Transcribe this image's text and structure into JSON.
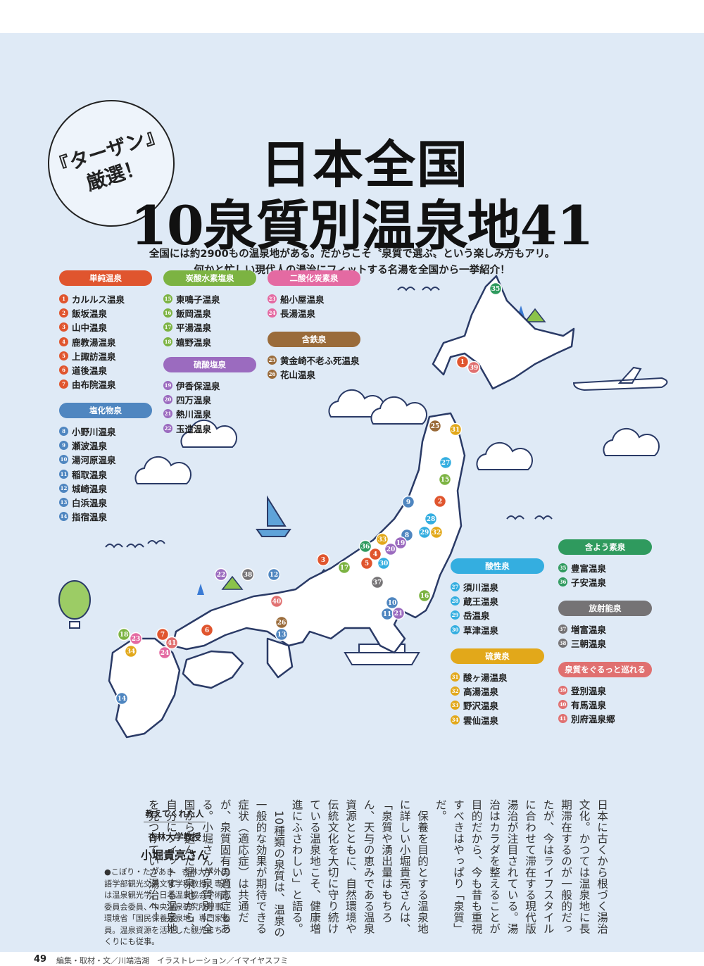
{
  "badge": {
    "line1": "『ターザン』",
    "line2": "厳選！"
  },
  "title": {
    "line1": "日本全国",
    "line2": "10泉質別温泉地41"
  },
  "lead": {
    "line1": "全国には約2900もの温泉地がある。だからこそ〝泉質で選ぶ〟という楽しみ方もアリ。",
    "line2": "何かと忙しい現代人の湯治にフィットする名湯を全国から一挙紹介！"
  },
  "categories": [
    {
      "label": "単純温泉",
      "color": "#e0552e",
      "items": [
        {
          "n": "1",
          "name": "カルルス温泉"
        },
        {
          "n": "2",
          "name": "飯坂温泉"
        },
        {
          "n": "3",
          "name": "山中温泉"
        },
        {
          "n": "4",
          "name": "鹿教湯温泉"
        },
        {
          "n": "5",
          "name": "上諏訪温泉"
        },
        {
          "n": "6",
          "name": "道後温泉"
        },
        {
          "n": "7",
          "name": "由布院温泉"
        }
      ]
    },
    {
      "label": "塩化物泉",
      "color": "#4f86c0",
      "items": [
        {
          "n": "8",
          "name": "小野川温泉"
        },
        {
          "n": "9",
          "name": "瀬波温泉"
        },
        {
          "n": "10",
          "name": "湯河原温泉"
        },
        {
          "n": "11",
          "name": "稲取温泉"
        },
        {
          "n": "12",
          "name": "城崎温泉"
        },
        {
          "n": "13",
          "name": "白浜温泉"
        },
        {
          "n": "14",
          "name": "指宿温泉"
        }
      ]
    },
    {
      "label": "炭酸水素塩泉",
      "color": "#7cb342",
      "items": [
        {
          "n": "15",
          "name": "東鳴子温泉"
        },
        {
          "n": "16",
          "name": "飯岡温泉"
        },
        {
          "n": "17",
          "name": "平湯温泉"
        },
        {
          "n": "18",
          "name": "嬉野温泉"
        }
      ]
    },
    {
      "label": "硫酸塩泉",
      "color": "#9b6bbf",
      "items": [
        {
          "n": "19",
          "name": "伊香保温泉"
        },
        {
          "n": "20",
          "name": "四万温泉"
        },
        {
          "n": "21",
          "name": "熱川温泉"
        },
        {
          "n": "22",
          "name": "玉造温泉"
        }
      ]
    },
    {
      "label": "二酸化炭素泉",
      "color": "#e46aa2",
      "items": [
        {
          "n": "23",
          "name": "船小屋温泉"
        },
        {
          "n": "24",
          "name": "長湯温泉"
        }
      ]
    },
    {
      "label": "含鉄泉",
      "color": "#9a6b3a",
      "items": [
        {
          "n": "25",
          "name": "黄金崎不老ふ死温泉"
        },
        {
          "n": "26",
          "name": "花山温泉"
        }
      ]
    },
    {
      "label": "酸性泉",
      "color": "#34aee0",
      "items": [
        {
          "n": "27",
          "name": "須川温泉"
        },
        {
          "n": "28",
          "name": "蔵王温泉"
        },
        {
          "n": "29",
          "name": "岳温泉"
        },
        {
          "n": "30",
          "name": "草津温泉"
        }
      ]
    },
    {
      "label": "硫黄泉",
      "color": "#e2a81a",
      "items": [
        {
          "n": "31",
          "name": "酸ヶ湯温泉"
        },
        {
          "n": "32",
          "name": "高湯温泉"
        },
        {
          "n": "33",
          "name": "野沢温泉"
        },
        {
          "n": "34",
          "name": "雲仙温泉"
        }
      ]
    },
    {
      "label": "含よう素泉",
      "color": "#2f9a5e",
      "items": [
        {
          "n": "35",
          "name": "豊富温泉"
        },
        {
          "n": "36",
          "name": "子安温泉"
        }
      ]
    },
    {
      "label": "放射能泉",
      "color": "#757375",
      "items": [
        {
          "n": "37",
          "name": "増富温泉"
        },
        {
          "n": "38",
          "name": "三朝温泉"
        }
      ]
    },
    {
      "label": "泉質をぐるっと巡れる",
      "color": "#e07070",
      "items": [
        {
          "n": "39",
          "name": "登別温泉"
        },
        {
          "n": "40",
          "name": "有馬温泉"
        },
        {
          "n": "41",
          "name": "別府温泉郷"
        }
      ]
    }
  ],
  "article": {
    "paragraphs": [
      "日本に古くから根づく湯治文化。かつては温泉地に長期滞在するのが一般的だったが、今はライフスタイルに合わせて滞在する現代版湯治が注目されている。湯治はカラダを整えることが目的だから、今も昔も重視すべきはやっぱり「泉質」だ。",
      "保養を目的とする温泉地に詳しい小堀貴亮さんは、「泉質や湧出量はもちろん、天与の恵みである温泉資源とともに、自然環境や伝統文化を大切に守り続けている温泉地こそ、健康増進にふさわしい」と語る。",
      "10種類の泉質は、温泉の一般的な効果が期待できる症状（適応症）は共通だが、泉質固有の適応症もある。小堀さんが泉質別に全国から選んだ温泉地から、自分にフィットする温泉地を見つけていざ湯治へ！"
    ]
  },
  "profile": {
    "heading": "教えてくれた人",
    "org": "杏林大学教授",
    "name": "小堀貴亮さん",
    "bio": "●こぼり・たかあき　杏林大学外国語学部観光交流文化学科教授。専門は温泉観光学。日本温泉協会学術部委員会委員、中央温泉研究所理事、環境省「国民保養温泉地」専門家委員。温泉資源を活かした観光まちづくりにも従事。"
  },
  "footer": {
    "page": "49",
    "credit": "編集・取材・文／川端浩湖　イラストレーション／イマイヤスフミ"
  },
  "colors": {
    "background": "#dfeaf6",
    "land": "#ffffff",
    "outline": "#2a3a66"
  }
}
